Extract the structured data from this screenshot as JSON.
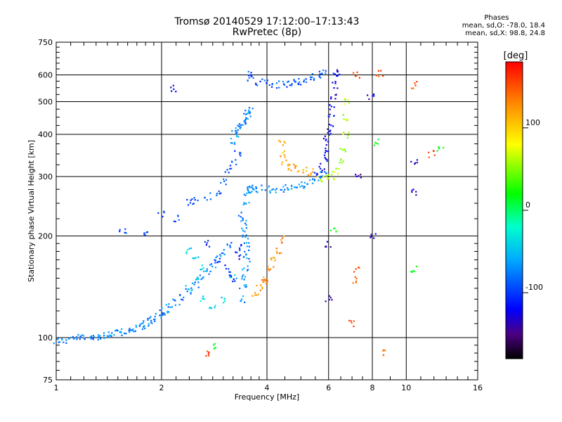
{
  "header": {
    "title": "Tromsø 20140529 17:12:00–17:13:43",
    "subtitle": "RwPretec (8p)"
  },
  "stats": {
    "title": "Phases",
    "line1": "mean, sd,O: -78.0, 18.4",
    "line2": "mean, sd,X:  98.8, 24.8"
  },
  "chart_data": {
    "type": "scatter",
    "xlabel": "Frequency [MHz]",
    "ylabel": "Stationary phase Virtual Height [km]",
    "x_scale": "log",
    "y_scale": "log",
    "xlim": [
      1,
      16
    ],
    "ylim": [
      75,
      750
    ],
    "x_ticks": [
      1,
      2,
      4,
      6,
      8,
      10,
      16
    ],
    "y_ticks": [
      75,
      100,
      200,
      300,
      400,
      500,
      600,
      750
    ],
    "grid": true,
    "colorbar": {
      "label": "[deg]",
      "range": [
        -180,
        180
      ],
      "ticks": [
        100,
        0,
        -100
      ],
      "stops": [
        {
          "v": -180,
          "color": "#000000"
        },
        {
          "v": -150,
          "color": "#4b0082"
        },
        {
          "v": -120,
          "color": "#0000ff"
        },
        {
          "v": -60,
          "color": "#00aaff"
        },
        {
          "v": -20,
          "color": "#00ffcc"
        },
        {
          "v": 20,
          "color": "#00ff00"
        },
        {
          "v": 80,
          "color": "#ffff00"
        },
        {
          "v": 130,
          "color": "#ff8800"
        },
        {
          "v": 180,
          "color": "#ff0000"
        }
      ]
    },
    "series": [
      {
        "phase": -75,
        "points": [
          [
            1.0,
            98
          ],
          [
            1.05,
            98
          ],
          [
            1.1,
            99
          ],
          [
            1.15,
            100
          ],
          [
            1.2,
            100
          ],
          [
            1.25,
            100
          ],
          [
            1.3,
            101
          ],
          [
            1.35,
            101
          ],
          [
            1.4,
            102
          ],
          [
            1.45,
            102
          ],
          [
            1.5,
            103
          ],
          [
            1.55,
            104
          ],
          [
            1.6,
            104
          ],
          [
            1.65,
            105
          ],
          [
            1.7,
            107
          ],
          [
            1.75,
            108
          ],
          [
            1.8,
            110
          ],
          [
            1.85,
            112
          ],
          [
            1.9,
            114
          ],
          [
            1.95,
            116
          ],
          [
            2.0,
            118
          ],
          [
            2.05,
            120
          ],
          [
            2.1,
            123
          ],
          [
            2.2,
            127
          ],
          [
            2.3,
            132
          ],
          [
            2.4,
            137
          ],
          [
            2.5,
            143
          ],
          [
            2.6,
            150
          ],
          [
            2.7,
            157
          ],
          [
            2.8,
            165
          ],
          [
            2.9,
            172
          ],
          [
            3.0,
            180
          ],
          [
            3.1,
            188
          ]
        ]
      },
      {
        "phase": -95,
        "points": [
          [
            1.55,
            205
          ],
          [
            1.8,
            205
          ],
          [
            2.0,
            232
          ],
          [
            2.2,
            225
          ],
          [
            2.4,
            252
          ],
          [
            2.5,
            255
          ],
          [
            2.7,
            262
          ],
          [
            2.9,
            270
          ],
          [
            3.0,
            290
          ],
          [
            3.1,
            310
          ],
          [
            3.2,
            330
          ],
          [
            3.3,
            350
          ]
        ]
      },
      {
        "phase": -70,
        "points": [
          [
            3.2,
            380
          ],
          [
            3.25,
            400
          ],
          [
            3.3,
            410
          ],
          [
            3.35,
            420
          ],
          [
            3.4,
            430
          ],
          [
            3.45,
            440
          ],
          [
            3.5,
            450
          ],
          [
            3.55,
            460
          ],
          [
            3.6,
            470
          ]
        ]
      },
      {
        "phase": -70,
        "points": [
          [
            3.5,
            250
          ],
          [
            3.52,
            265
          ],
          [
            3.55,
            275
          ],
          [
            3.6,
            278
          ],
          [
            3.7,
            278
          ],
          [
            3.8,
            276
          ],
          [
            4.0,
            275
          ],
          [
            4.2,
            275
          ],
          [
            4.4,
            276
          ],
          [
            4.6,
            277
          ],
          [
            4.8,
            278
          ],
          [
            5.0,
            282
          ],
          [
            5.2,
            286
          ],
          [
            5.4,
            291
          ],
          [
            5.6,
            298
          ],
          [
            5.8,
            306
          ]
        ]
      },
      {
        "phase": -70,
        "points": [
          [
            3.4,
            230
          ],
          [
            3.42,
            220
          ],
          [
            3.45,
            210
          ],
          [
            3.48,
            200
          ],
          [
            3.5,
            190
          ],
          [
            3.52,
            180
          ],
          [
            3.5,
            170
          ],
          [
            3.48,
            160
          ],
          [
            3.45,
            150
          ],
          [
            3.42,
            140
          ],
          [
            3.4,
            130
          ]
        ]
      },
      {
        "phase": -90,
        "points": [
          [
            3.55,
            600
          ],
          [
            3.6,
            585
          ],
          [
            3.8,
            570
          ],
          [
            4.0,
            565
          ],
          [
            4.2,
            562
          ],
          [
            4.4,
            562
          ],
          [
            4.6,
            565
          ],
          [
            4.8,
            570
          ],
          [
            5.0,
            575
          ],
          [
            5.2,
            582
          ],
          [
            5.4,
            590
          ],
          [
            5.6,
            600
          ],
          [
            5.8,
            615
          ]
        ]
      },
      {
        "phase": -120,
        "points": [
          [
            5.6,
            310
          ],
          [
            5.75,
            320
          ],
          [
            5.85,
            340
          ],
          [
            5.9,
            360
          ],
          [
            5.95,
            380
          ],
          [
            6.0,
            400
          ],
          [
            6.05,
            420
          ],
          [
            6.1,
            450
          ],
          [
            6.15,
            480
          ],
          [
            6.2,
            520
          ],
          [
            6.25,
            560
          ],
          [
            6.3,
            600
          ]
        ]
      },
      {
        "phase": 120,
        "points": [
          [
            4.4,
            380
          ],
          [
            4.45,
            350
          ],
          [
            4.5,
            330
          ],
          [
            4.7,
            320
          ],
          [
            4.9,
            315
          ],
          [
            5.1,
            312
          ],
          [
            5.3,
            310
          ]
        ]
      },
      {
        "phase": 130,
        "points": [
          [
            3.7,
            135
          ],
          [
            3.8,
            140
          ],
          [
            3.9,
            145
          ],
          [
            4.0,
            150
          ],
          [
            4.1,
            160
          ],
          [
            4.2,
            170
          ],
          [
            4.3,
            182
          ],
          [
            4.4,
            195
          ]
        ]
      },
      {
        "phase": 60,
        "points": [
          [
            5.7,
            295
          ],
          [
            5.9,
            297
          ],
          [
            6.1,
            300
          ],
          [
            6.3,
            310
          ],
          [
            6.5,
            330
          ],
          [
            6.6,
            360
          ],
          [
            6.7,
            400
          ],
          [
            6.75,
            450
          ],
          [
            6.8,
            500
          ]
        ]
      },
      {
        "phase": -40,
        "points": [
          [
            2.4,
            140
          ],
          [
            2.5,
            150
          ],
          [
            2.6,
            160
          ],
          [
            2.5,
            170
          ],
          [
            2.4,
            180
          ],
          [
            2.6,
            130
          ],
          [
            2.8,
            125
          ],
          [
            3.0,
            130
          ],
          [
            3.2,
            150
          ]
        ]
      },
      {
        "phase": -110,
        "points": [
          [
            2.7,
            190
          ],
          [
            2.9,
            170
          ],
          [
            3.1,
            160
          ],
          [
            3.2,
            150
          ],
          [
            3.3,
            175
          ],
          [
            3.4,
            185
          ]
        ]
      },
      {
        "phase": 150,
        "points": [
          [
            7.2,
            600
          ],
          [
            8.4,
            605
          ],
          [
            10.5,
            560
          ],
          [
            7.2,
            160
          ],
          [
            7.2,
            148
          ],
          [
            8.5,
            90
          ],
          [
            11.8,
            350
          ],
          [
            7.0,
            110
          ],
          [
            2.7,
            90
          ]
        ]
      },
      {
        "phase": -135,
        "points": [
          [
            6.0,
            130
          ],
          [
            6.0,
            190
          ],
          [
            6.4,
            610
          ],
          [
            7.3,
            305
          ],
          [
            8.0,
            200
          ],
          [
            10.5,
            330
          ],
          [
            10.5,
            270
          ],
          [
            7.9,
            520
          ],
          [
            2.15,
            545
          ]
        ]
      },
      {
        "phase": 20,
        "points": [
          [
            2.8,
            95
          ],
          [
            8.2,
            380
          ],
          [
            10.5,
            160
          ],
          [
            12.5,
            360
          ],
          [
            6.2,
            210
          ]
        ]
      }
    ]
  }
}
